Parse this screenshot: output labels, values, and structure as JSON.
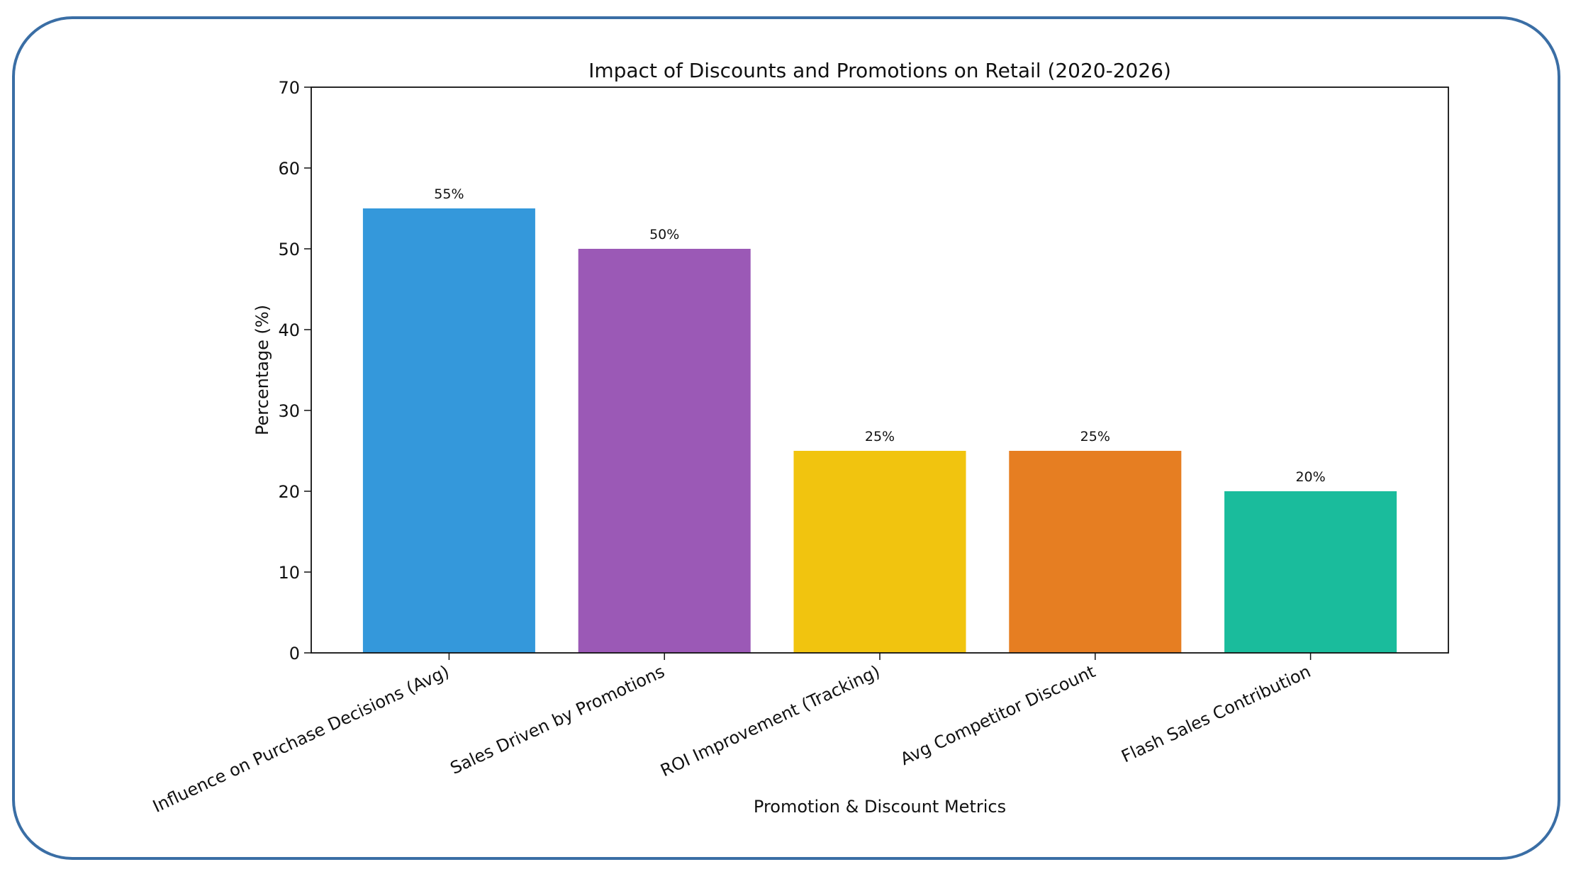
{
  "chart_data": {
    "type": "bar",
    "title": "Impact of Discounts and Promotions on Retail (2020-2026)",
    "xlabel": "Promotion & Discount Metrics",
    "ylabel": "Percentage (%)",
    "categories": [
      "Influence on Purchase Decisions (Avg)",
      "Sales Driven by Promotions",
      "ROI Improvement (Tracking)",
      "Avg Competitor Discount",
      "Flash Sales Contribution"
    ],
    "values": [
      55,
      50,
      25,
      25,
      20
    ],
    "data_labels": [
      "55%",
      "50%",
      "25%",
      "25%",
      "20%"
    ],
    "colors": [
      "#3498db",
      "#9b59b6",
      "#f1c40f",
      "#e67e22",
      "#1abc9c"
    ],
    "ylim": [
      0,
      70
    ],
    "yticks": [
      0,
      10,
      20,
      30,
      40,
      50,
      60,
      70
    ],
    "grid": false,
    "frame_color": "#3a6ea5"
  }
}
